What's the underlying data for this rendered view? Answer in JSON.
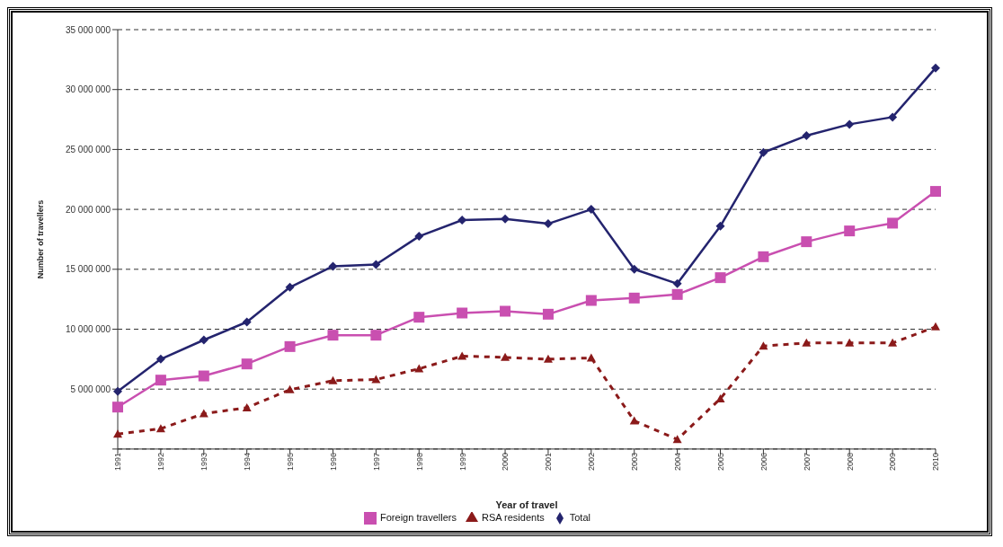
{
  "chart_data": {
    "type": "line",
    "xlabel": "Year of travel",
    "ylabel": "Number of travellers",
    "categories": [
      "1991",
      "1992",
      "1993",
      "1994",
      "1995",
      "1996",
      "1997",
      "1998",
      "1999",
      "2000",
      "2001",
      "2002",
      "2003",
      "2004",
      "2005",
      "2006",
      "2007",
      "2008",
      "2009",
      "2010"
    ],
    "series": [
      {
        "name": "Total",
        "color": "#24246e",
        "marker": "diamond",
        "line_style": "solid",
        "values": [
          4800000,
          7500000,
          9100000,
          10600000,
          13500000,
          15250000,
          15400000,
          17750000,
          19100000,
          19200000,
          18800000,
          20000000,
          15000000,
          13800000,
          18600000,
          24750000,
          26150000,
          27100000,
          27700000,
          31800000
        ]
      },
      {
        "name": "Foreign travellers",
        "color": "#c94fb0",
        "marker": "square",
        "line_style": "solid",
        "values": [
          3500000,
          5750000,
          6100000,
          7100000,
          8550000,
          9500000,
          9500000,
          11000000,
          11350000,
          11500000,
          11250000,
          12400000,
          12600000,
          12900000,
          14300000,
          16050000,
          17300000,
          18200000,
          18850000,
          21500000
        ]
      },
      {
        "name": "RSA residents",
        "color": "#8b1a1a",
        "marker": "triangle",
        "line_style": "dashed",
        "values": [
          1250000,
          1700000,
          2950000,
          3450000,
          4950000,
          5700000,
          5800000,
          6700000,
          7750000,
          7650000,
          7500000,
          7600000,
          2350000,
          800000,
          4200000,
          8600000,
          8850000,
          8850000,
          8850000,
          10200000
        ]
      }
    ],
    "ylim": [
      0,
      35000000
    ],
    "yticks": [
      {
        "value": 0,
        "label": null
      },
      {
        "value": 5000000,
        "label": "5 000 000"
      },
      {
        "value": 10000000,
        "label": "10 000 000"
      },
      {
        "value": 15000000,
        "label": "15 000 000"
      },
      {
        "value": 20000000,
        "label": "20 000 000"
      },
      {
        "value": 25000000,
        "label": "25 000 000"
      },
      {
        "value": 30000000,
        "label": "30 000 000"
      },
      {
        "value": 35000000,
        "label": "35 000 000"
      }
    ],
    "grid": "y",
    "legend": "bottom"
  }
}
